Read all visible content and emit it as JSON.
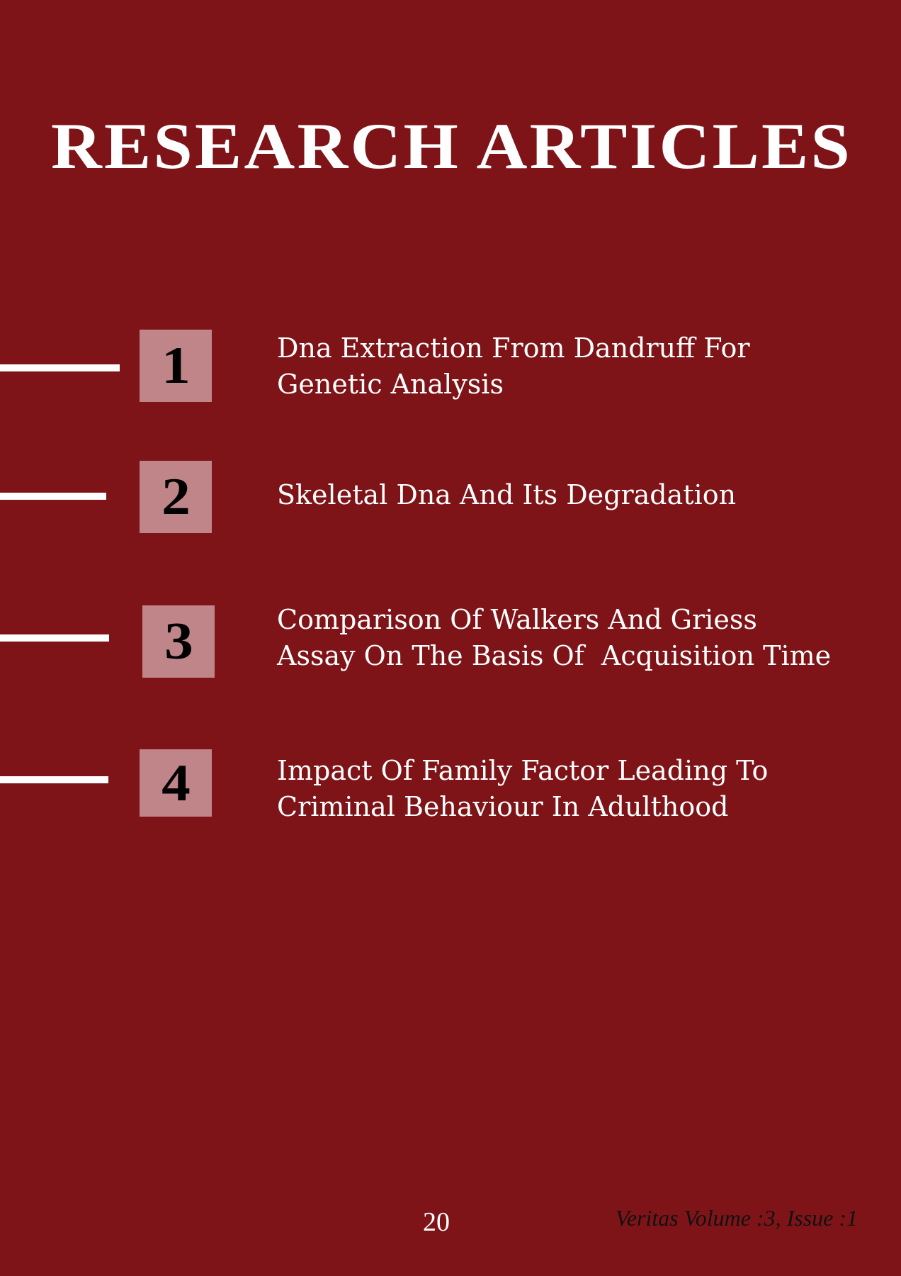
{
  "page": {
    "title": "RESEARCH ARTICLES",
    "background_color": "#7e1418",
    "box_color": "#bf8589"
  },
  "articles": [
    {
      "number": "1",
      "title": "Dna Extraction From Dandruff For\nGenetic Analysis"
    },
    {
      "number": "2",
      "title": "Skeletal Dna And Its Degradation"
    },
    {
      "number": "3",
      "title": "Comparison Of Walkers And Griess\nAssay On The Basis Of  Acquisition Time"
    },
    {
      "number": "4",
      "title": "Impact Of Family Factor Leading To\nCriminal Behaviour In Adulthood"
    }
  ],
  "footer": {
    "page_number": "20",
    "journal_issue": "Veritas Volume :3, Issue :1"
  }
}
